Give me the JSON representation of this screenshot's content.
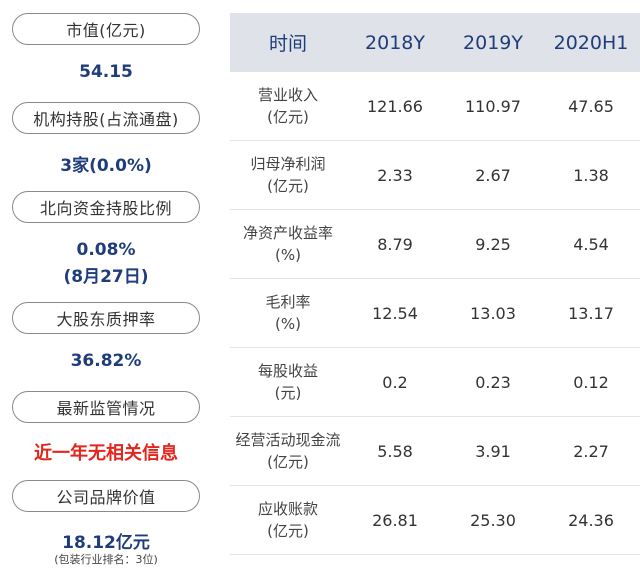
{
  "metrics": [
    {
      "label": "市值(亿元)",
      "value": "54.15"
    },
    {
      "label": "机构持股(占流通盘)",
      "value": "3家(0.0%)"
    },
    {
      "label": "北向资金持股比例",
      "value": "0.08%",
      "value2": "(8月27日)"
    },
    {
      "label": "大股东质押率",
      "value": "36.82%"
    },
    {
      "label": "最新监管情况",
      "value": "近一年无相关信息"
    },
    {
      "label": "公司品牌价值",
      "value": "18.12亿元",
      "note": "(包装行业排名：3位)"
    }
  ],
  "colors": {
    "value": "#1f3d7a",
    "alert": "#e3251d",
    "header_bg": "#dfe3e9"
  },
  "table": {
    "headers": [
      "时间",
      "2018Y",
      "2019Y",
      "2020H1"
    ],
    "rows": [
      {
        "label1": "营业收入",
        "label2": "(亿元)",
        "values": [
          "121.66",
          "110.97",
          "47.65"
        ]
      },
      {
        "label1": "归母净利润",
        "label2": "(亿元)",
        "values": [
          "2.33",
          "2.67",
          "1.38"
        ]
      },
      {
        "label1": "净资产收益率",
        "label2": "(%)",
        "values": [
          "8.79",
          "9.25",
          "4.54"
        ]
      },
      {
        "label1": "毛利率",
        "label2": "(%)",
        "values": [
          "12.54",
          "13.03",
          "13.17"
        ]
      },
      {
        "label1": "每股收益",
        "label2": "(元)",
        "values": [
          "0.2",
          "0.23",
          "0.12"
        ]
      },
      {
        "label1": "经营活动现金流",
        "label2": "(亿元)",
        "values": [
          "5.58",
          "3.91",
          "2.27"
        ]
      },
      {
        "label1": "应收账款",
        "label2": "(亿元)",
        "values": [
          "26.81",
          "25.30",
          "24.36"
        ]
      }
    ]
  }
}
